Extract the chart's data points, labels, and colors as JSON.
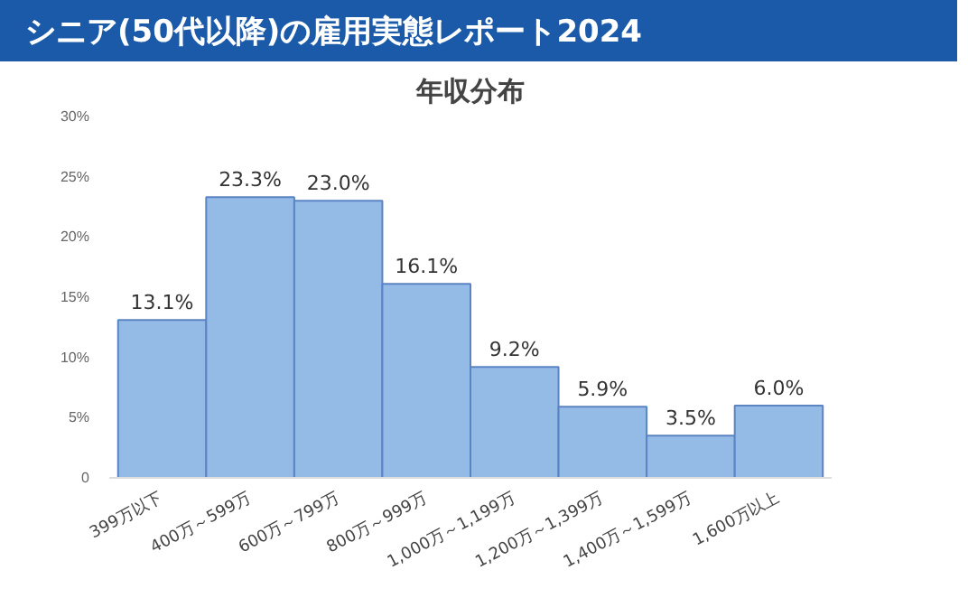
{
  "chart_data": {
    "type": "bar",
    "title": "シニア(50代以降)の雇用実態レポート2024",
    "subtitle": "年収分布",
    "categories": [
      "399万以下",
      "400万～599万",
      "600万～799万",
      "800万～999万",
      "1,000万～1,199万",
      "1,200万～1,399万",
      "1,400万～1,599万",
      "1,600万以上"
    ],
    "values": [
      13.1,
      23.3,
      23.0,
      16.1,
      9.2,
      5.9,
      3.5,
      6.0
    ],
    "color": "#94bbe6",
    "ylim": [
      0,
      30
    ],
    "yticks": [
      0,
      {
        "value": 5,
        "label": "5%"
      },
      {
        "value": 10,
        "label": "10%"
      },
      {
        "value": 15,
        "label": "15%"
      },
      {
        "value": 20,
        "label": "20%"
      },
      {
        "value": 25,
        "label": "25%"
      },
      {
        "value": 30,
        "label": "30%"
      }
    ],
    "value_labels": [
      "13.1%",
      "23.3%",
      "23.0%",
      "16.1%",
      "9.2%",
      "5.9%",
      "3.5%",
      "6.0%"
    ],
    "grid": false
  }
}
